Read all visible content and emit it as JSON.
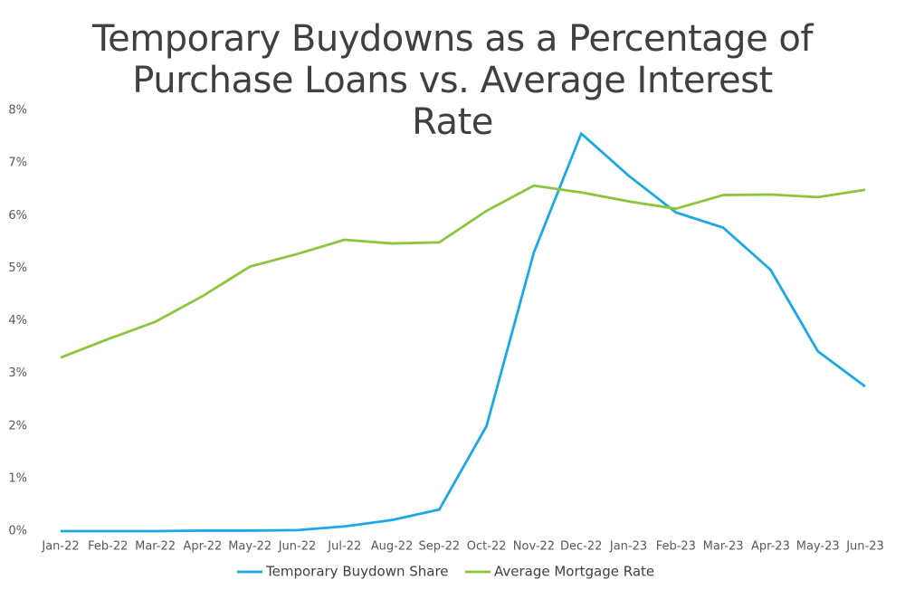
{
  "chart_data": {
    "type": "line",
    "title": "Temporary Buydowns as a Percentage of Purchase Loans vs. Average Interest Rate",
    "categories": [
      "Jan-22",
      "Feb-22",
      "Mar-22",
      "Apr-22",
      "May-22",
      "Jun-22",
      "Jul-22",
      "Aug-22",
      "Sep-22",
      "Oct-22",
      "Nov-22",
      "Dec-22",
      "Jan-23",
      "Feb-23",
      "Mar-23",
      "Apr-23",
      "May-23",
      "Jun-23"
    ],
    "series": [
      {
        "name": "Temporary Buydown Share",
        "color": "#1ba9e6",
        "values": [
          0,
          0,
          0,
          0.01,
          0.01,
          0.02,
          0.09,
          0.21,
          0.41,
          2.0,
          5.3,
          7.56,
          6.76,
          6.06,
          5.77,
          4.97,
          3.42,
          2.75
        ]
      },
      {
        "name": "Average Mortgage Rate",
        "color": "#8cc63f",
        "values": [
          3.3,
          3.65,
          3.98,
          4.47,
          5.03,
          5.27,
          5.54,
          5.47,
          5.49,
          6.09,
          6.57,
          6.44,
          6.27,
          6.13,
          6.39,
          6.4,
          6.35,
          6.49
        ]
      }
    ],
    "ylim": [
      0,
      8
    ],
    "yticks": [
      {
        "value": 0,
        "label": "0%"
      },
      {
        "value": 1,
        "label": "1%"
      },
      {
        "value": 2,
        "label": "2%"
      },
      {
        "value": 3,
        "label": "3%"
      },
      {
        "value": 4,
        "label": "4%"
      },
      {
        "value": 5,
        "label": "5%"
      },
      {
        "value": 6,
        "label": "6%"
      },
      {
        "value": 7,
        "label": "7%"
      },
      {
        "value": 8,
        "label": "8%"
      }
    ],
    "grid": false,
    "legend": "bottom"
  }
}
